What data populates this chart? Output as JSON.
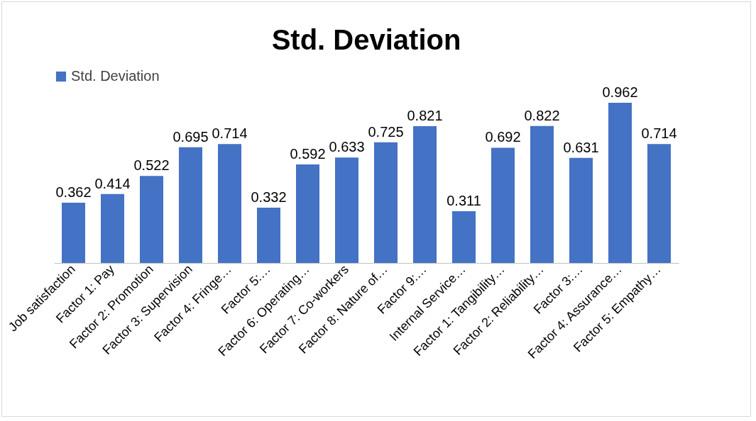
{
  "chart_data": {
    "type": "bar",
    "title": "Std. Deviation",
    "legend": "top",
    "data_labels": true,
    "categories": [
      "Job satisfaction",
      "Factor 1: Pay",
      "Factor 2: Promotion",
      "Factor 3: Supervision",
      "Factor 4: Fringe…",
      "Factor 5:…",
      "Factor 6: Operating…",
      "Factor 7: Co-workers",
      "Factor 8: Nature of…",
      "Factor 9:…",
      "Internal Service…",
      "Factor 1: Tangibility…",
      "Factor 2: Reliability…",
      "Factor 3:…",
      "Factor 4: Assurance…",
      "Factor 5: Empathy…"
    ],
    "series": [
      {
        "name": "Std. Deviation",
        "color": "#4472c4",
        "values": [
          0.362,
          0.414,
          0.522,
          0.695,
          0.714,
          0.332,
          0.592,
          0.633,
          0.725,
          0.821,
          0.311,
          0.692,
          0.822,
          0.631,
          0.962,
          0.714
        ]
      }
    ]
  }
}
